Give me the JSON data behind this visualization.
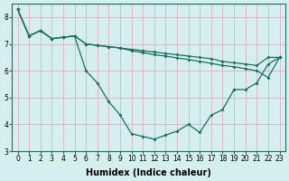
{
  "xlabel": "Humidex (Indice chaleur)",
  "xlim": [
    -0.5,
    23.5
  ],
  "ylim": [
    3,
    8.5
  ],
  "xticks": [
    0,
    1,
    2,
    3,
    4,
    5,
    6,
    7,
    8,
    9,
    10,
    11,
    12,
    13,
    14,
    15,
    16,
    17,
    18,
    19,
    20,
    21,
    22,
    23
  ],
  "yticks": [
    3,
    4,
    5,
    6,
    7,
    8
  ],
  "background_color": "#d5eeee",
  "grid_color": "#dbb8c8",
  "line_color": "#1a7060",
  "line1_y": [
    8.3,
    7.3,
    7.5,
    7.2,
    7.25,
    7.3,
    7.0,
    6.95,
    6.9,
    6.85,
    6.8,
    6.75,
    6.7,
    6.65,
    6.6,
    6.55,
    6.5,
    6.45,
    6.35,
    6.3,
    6.25,
    6.2,
    6.5,
    6.5
  ],
  "line2_y": [
    8.3,
    7.3,
    7.5,
    7.2,
    7.25,
    7.3,
    7.0,
    6.95,
    6.9,
    6.85,
    6.75,
    6.68,
    6.6,
    6.55,
    6.48,
    6.42,
    6.35,
    6.28,
    6.2,
    6.15,
    6.08,
    6.0,
    5.75,
    6.5
  ],
  "line3_y": [
    8.3,
    7.3,
    7.5,
    7.2,
    7.25,
    7.3,
    6.0,
    5.55,
    4.85,
    4.35,
    3.65,
    3.55,
    3.45,
    3.6,
    3.75,
    4.0,
    3.7,
    4.35,
    4.55,
    5.3,
    5.3,
    5.55,
    6.25,
    6.5
  ],
  "font_size_label": 7,
  "font_size_tick": 5.5,
  "marker": "D",
  "marker_size": 2.0,
  "linewidth": 0.9
}
